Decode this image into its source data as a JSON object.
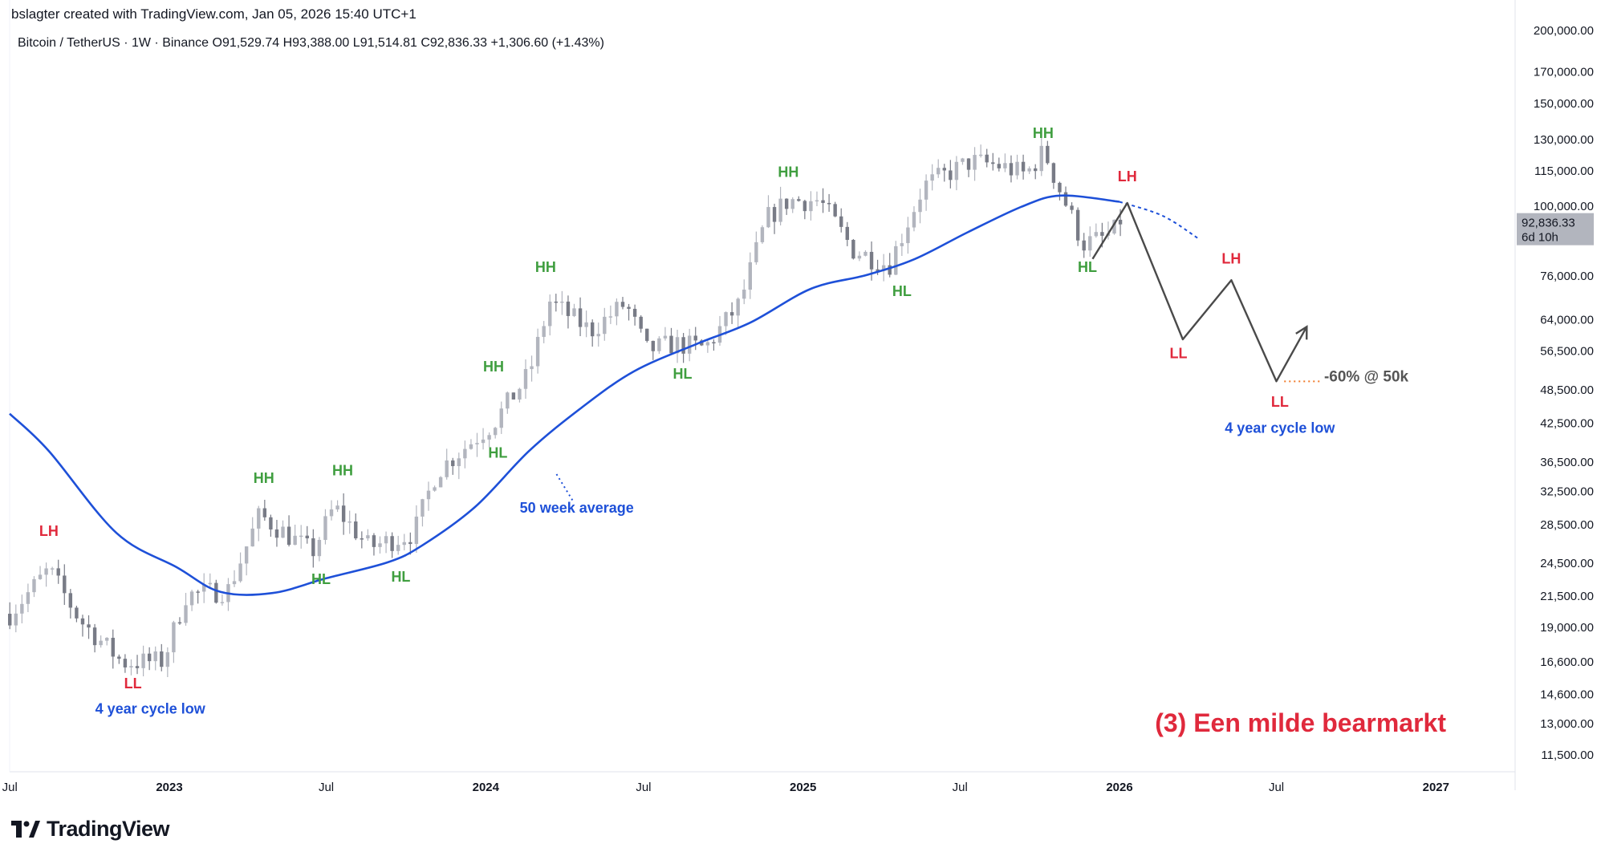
{
  "header": {
    "creator_text": "bslagter created with TradingView.com, Jan 05, 2026 15:40 UTC+1",
    "symbol": "Bitcoin / TetherUS · 1W · Binance",
    "open_label": "O",
    "open": "91,529.74",
    "high_label": "H",
    "high": "93,388.00",
    "low_label": "L",
    "low": "91,514.81",
    "close_label": "C",
    "close": "92,836.33",
    "change": "+1,306.60 (+1.43%)"
  },
  "brand": {
    "name": "TradingView",
    "icon": "tradingview-logo-icon"
  },
  "colors": {
    "candle": "#b2b5be",
    "candle_dark": "#787b86",
    "ma_line": "#1e50d8",
    "higher": "#3f9e3f",
    "lower": "#e0293c",
    "projection": "#4a4a4a",
    "orange_dots": "#f07a2a",
    "title_red": "#e0293c"
  },
  "chart_data": {
    "type": "candlestick",
    "title": "(3) Een milde bearmarkt",
    "y_scale": "log",
    "ylim": [
      10500,
      205000
    ],
    "x_ticks": [
      "Jul",
      "2023",
      "Jul",
      "2024",
      "Jul",
      "2025",
      "Jul",
      "2026",
      "Jul",
      "2027"
    ],
    "x_tick_dates": [
      "2022-07-01",
      "2023-01-01",
      "2023-07-01",
      "2024-01-01",
      "2024-07-01",
      "2025-01-01",
      "2025-07-01",
      "2026-01-01",
      "2026-07-01",
      "2027-01-01"
    ],
    "y_ticks": [
      200000,
      170000,
      150000,
      130000,
      115000,
      100000,
      76000,
      64000,
      56500,
      48500,
      42500,
      36500,
      32500,
      28500,
      24500,
      21500,
      19000,
      16600,
      14600,
      13000,
      11500
    ],
    "y_tick_labels": [
      "200,000.00",
      "170,000.00",
      "150,000.00",
      "130,000.00",
      "115,000.00",
      "100,000.00",
      "76,000.00",
      "64,000.00",
      "56,500.00",
      "48,500.00",
      "42,500.00",
      "36,500.00",
      "32,500.00",
      "28,500.00",
      "24,500.00",
      "21,500.00",
      "19,000.00",
      "16,600.00",
      "14,600.00",
      "13,000.00",
      "11,500.00"
    ],
    "last_price": {
      "label": "92,836.33",
      "countdown": "6d 10h",
      "value": 92836.33
    },
    "series": [
      {
        "name": "Bitcoin / TetherUS",
        "ohlc_anchors": [
          [
            "2022-07-01",
            20000
          ],
          [
            "2022-08-15",
            23800
          ],
          [
            "2022-09-20",
            19500
          ],
          [
            "2022-11-08",
            16500
          ],
          [
            "2022-12-25",
            16600
          ],
          [
            "2023-01-20",
            21500
          ],
          [
            "2023-03-10",
            22000
          ],
          [
            "2023-04-15",
            29500
          ],
          [
            "2023-06-15",
            25500
          ],
          [
            "2023-07-10",
            30500
          ],
          [
            "2023-08-20",
            26000
          ],
          [
            "2023-10-10",
            27500
          ],
          [
            "2023-11-05",
            35000
          ],
          [
            "2024-01-10",
            42500
          ],
          [
            "2024-02-20",
            51500
          ],
          [
            "2024-03-15",
            68500
          ],
          [
            "2024-05-01",
            61000
          ],
          [
            "2024-06-10",
            68000
          ],
          [
            "2024-07-05",
            56500
          ],
          [
            "2024-08-05",
            58000
          ],
          [
            "2024-09-10",
            57000
          ],
          [
            "2024-10-20",
            68000
          ],
          [
            "2024-11-20",
            95000
          ],
          [
            "2024-12-15",
            102000
          ],
          [
            "2025-01-20",
            102000
          ],
          [
            "2025-02-28",
            84000
          ],
          [
            "2025-04-10",
            79000
          ],
          [
            "2025-05-20",
            108000
          ],
          [
            "2025-07-14",
            119000
          ],
          [
            "2025-08-15",
            117000
          ],
          [
            "2025-09-15",
            113000
          ],
          [
            "2025-10-06",
            124000
          ],
          [
            "2025-10-20",
            110000
          ],
          [
            "2025-11-20",
            86000
          ],
          [
            "2025-12-15",
            88000
          ],
          [
            "2026-01-05",
            92836
          ]
        ]
      },
      {
        "name": "",
        "anchors": [
          [
            "2022-06-25",
            44000
          ],
          [
            "2022-08-15",
            38000
          ],
          [
            "2022-11-01",
            27500
          ],
          [
            "2023-01-10",
            24000
          ],
          [
            "2023-03-01",
            21800
          ],
          [
            "2023-04-30",
            21700
          ],
          [
            "2023-07-01",
            23000
          ],
          [
            "2023-09-10",
            24500
          ],
          [
            "2023-10-20",
            26200
          ],
          [
            "2023-12-20",
            30500
          ],
          [
            "2024-02-20",
            38000
          ],
          [
            "2024-04-20",
            45000
          ],
          [
            "2024-06-20",
            52000
          ],
          [
            "2024-09-01",
            58000
          ],
          [
            "2024-11-01",
            63000
          ],
          [
            "2025-01-10",
            72000
          ],
          [
            "2025-03-15",
            76000
          ],
          [
            "2025-05-10",
            81000
          ],
          [
            "2025-07-10",
            90000
          ],
          [
            "2025-09-10",
            99500
          ],
          [
            "2025-10-25",
            104000
          ],
          [
            "2026-01-01",
            101500
          ]
        ],
        "projection": [
          [
            "2026-01-01",
            101500
          ],
          [
            "2026-02-20",
            96000
          ],
          [
            "2026-04-01",
            88000
          ]
        ]
      },
      {
        "name": "",
        "points": [
          [
            "2025-12-01",
            81000
          ],
          [
            "2026-01-10",
            101000
          ],
          [
            "2026-03-15",
            59000
          ],
          [
            "2026-05-10",
            74500
          ],
          [
            "2026-07-01",
            50000
          ],
          [
            "2026-08-05",
            62000
          ]
        ]
      }
    ],
    "annotations": [
      {
        "text": "LH",
        "kind": "lower",
        "date": "2022-08-15",
        "price": 27200
      },
      {
        "text": "LL",
        "kind": "lower",
        "date": "2022-11-20",
        "price": 14900
      },
      {
        "text": "4 year cycle low",
        "kind": "blue",
        "date": "2022-12-10",
        "price": 13500
      },
      {
        "text": "HH",
        "kind": "higher",
        "date": "2023-04-20",
        "price": 33500
      },
      {
        "text": "HH",
        "kind": "higher",
        "date": "2023-07-20",
        "price": 34500
      },
      {
        "text": "HL",
        "kind": "higher",
        "date": "2023-06-25",
        "price": 22500
      },
      {
        "text": "HL",
        "kind": "higher",
        "date": "2023-09-25",
        "price": 22700
      },
      {
        "text": "HH",
        "kind": "higher",
        "date": "2024-01-10",
        "price": 52000
      },
      {
        "text": "HL",
        "kind": "higher",
        "date": "2024-01-15",
        "price": 37000
      },
      {
        "text": "HH",
        "kind": "higher",
        "date": "2024-03-10",
        "price": 77000
      },
      {
        "text": "50 week average",
        "kind": "blue",
        "date": "2024-04-15",
        "price": 29800
      },
      {
        "text": "HL",
        "kind": "higher",
        "date": "2024-08-15",
        "price": 50500
      },
      {
        "text": "HH",
        "kind": "higher",
        "date": "2024-12-15",
        "price": 112000
      },
      {
        "text": "HL",
        "kind": "higher",
        "date": "2025-04-25",
        "price": 70000
      },
      {
        "text": "HH",
        "kind": "higher",
        "date": "2025-10-05",
        "price": 130500
      },
      {
        "text": "HL",
        "kind": "higher",
        "date": "2025-11-25",
        "price": 77000
      },
      {
        "text": "LH",
        "kind": "lower",
        "date": "2026-01-10",
        "price": 110000
      },
      {
        "text": "LL",
        "kind": "lower",
        "date": "2026-03-10",
        "price": 54800
      },
      {
        "text": "LH",
        "kind": "lower",
        "date": "2026-05-10",
        "price": 79500
      },
      {
        "text": "LL",
        "kind": "lower",
        "date": "2026-07-05",
        "price": 45200
      },
      {
        "text": "4 year cycle low",
        "kind": "blue",
        "date": "2026-07-05",
        "price": 40800
      },
      {
        "text": "-60% @ 50k",
        "kind": "gray",
        "date": "2026-08-25",
        "price": 50000
      }
    ]
  }
}
